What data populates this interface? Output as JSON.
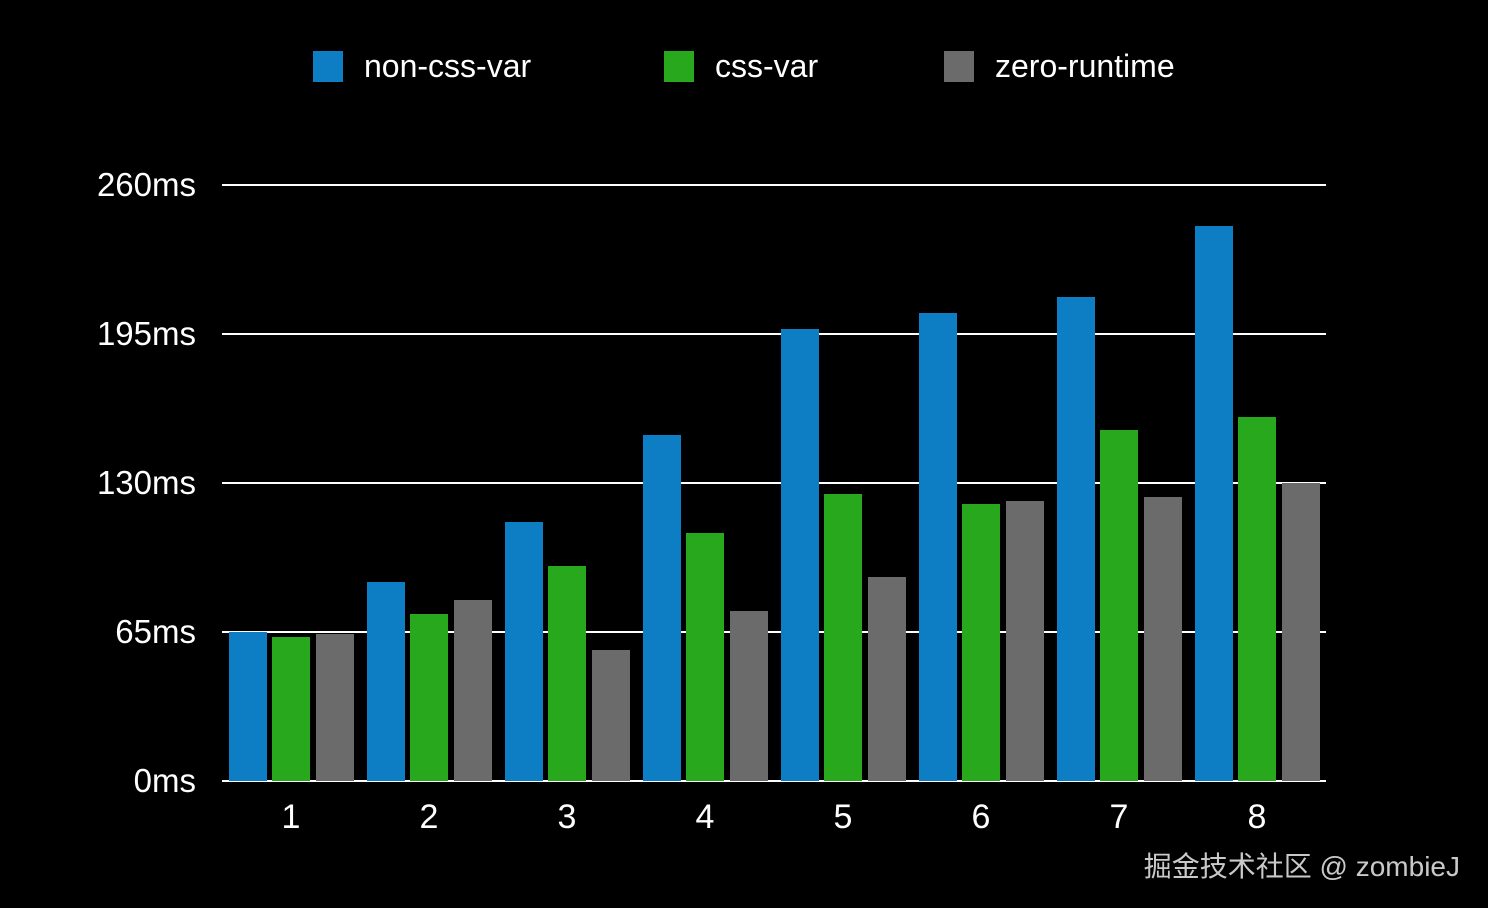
{
  "legend": {
    "items": [
      {
        "label": "non-css-var",
        "color": "#0d7ec3"
      },
      {
        "label": "css-var",
        "color": "#28a81d"
      },
      {
        "label": "zero-runtime",
        "color": "#6b6b6b"
      }
    ]
  },
  "chart_data": {
    "type": "bar",
    "categories": [
      "1",
      "2",
      "3",
      "4",
      "5",
      "6",
      "7",
      "8"
    ],
    "series": [
      {
        "name": "non-css-var",
        "color": "#0d7ec3",
        "values": [
          65,
          87,
          113,
          151,
          197,
          204,
          211,
          242
        ]
      },
      {
        "name": "css-var",
        "color": "#28a81d",
        "values": [
          63,
          73,
          94,
          108,
          125,
          121,
          153,
          159
        ]
      },
      {
        "name": "zero-runtime",
        "color": "#6b6b6b",
        "values": [
          64,
          79,
          57,
          74,
          89,
          122,
          124,
          130
        ]
      }
    ],
    "xlabel": "",
    "ylabel": "",
    "y_ticks": [
      {
        "value": 0,
        "label": "0ms"
      },
      {
        "value": 65,
        "label": "65ms"
      },
      {
        "value": 130,
        "label": "130ms"
      },
      {
        "value": 195,
        "label": "195ms"
      },
      {
        "value": 260,
        "label": "260ms"
      }
    ],
    "ylim": [
      0,
      260
    ],
    "grid": true,
    "legend_position": "top"
  },
  "colors": {
    "background": "#000000",
    "grid_line": "#ffffff",
    "axis_text": "#ffffff",
    "watermark_text": "#c9c9c9"
  },
  "watermark": {
    "text": "掘金技术社区 @ zombieJ"
  }
}
